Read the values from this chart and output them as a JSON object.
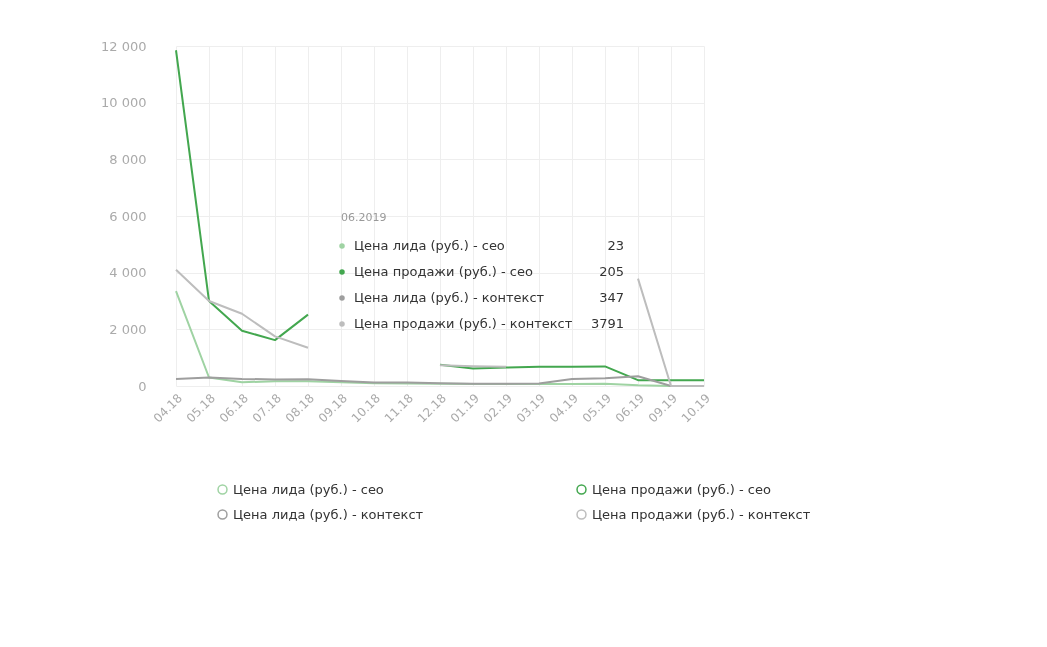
{
  "chart_data": {
    "type": "line",
    "categories": [
      "04.18",
      "05.18",
      "06.18",
      "07.18",
      "08.18",
      "09.18",
      "10.18",
      "11.18",
      "12.18",
      "01.19",
      "02.19",
      "03.19",
      "04.19",
      "05.19",
      "06.19",
      "09.19",
      "10.19"
    ],
    "series": [
      {
        "name": "Цена лида (руб.) - сео",
        "color": "#9fd3a3",
        "values": [
          3350,
          300,
          130,
          170,
          170,
          130,
          100,
          90,
          80,
          70,
          70,
          70,
          70,
          80,
          23,
          0,
          0
        ]
      },
      {
        "name": "Цена продажи (руб.) - сео",
        "color": "#43a74f",
        "values": [
          11850,
          3000,
          1950,
          1620,
          2520,
          null,
          null,
          null,
          750,
          620,
          650,
          680,
          680,
          690,
          205,
          205,
          205
        ]
      },
      {
        "name": "Цена лида (руб.) - контекст",
        "color": "#9e9e9e",
        "values": [
          250,
          300,
          250,
          230,
          240,
          180,
          120,
          120,
          100,
          80,
          80,
          90,
          250,
          270,
          347,
          0,
          0
        ]
      },
      {
        "name": "Цена продажи (руб.) - контекст",
        "color": "#bdbdbd",
        "values": [
          4100,
          3000,
          2550,
          1750,
          1350,
          null,
          null,
          null,
          730,
          700,
          680,
          null,
          null,
          null,
          3791,
          0,
          0
        ]
      }
    ],
    "ylim": [
      0,
      12000
    ],
    "yticks": [
      0,
      {
        "value": 2000,
        "label": "2 000"
      },
      {
        "value": 4000,
        "label": "4 000"
      },
      {
        "value": 6000,
        "label": "6 000"
      },
      {
        "value": 8000,
        "label": "8 000"
      },
      {
        "value": 10000,
        "label": "10 000"
      },
      {
        "value": 12000,
        "label": "12 000"
      }
    ],
    "grid": true,
    "legend": "bottom",
    "marker": "none",
    "annotations": [
      "06.2019",
      "Цена лида (руб.) - сео",
      "23",
      "Цена продажи (руб.) - сео",
      "205",
      "Цена лида (руб.) - контекст",
      "347",
      "Цена продажи (руб.) - контекст",
      "3791"
    ]
  }
}
